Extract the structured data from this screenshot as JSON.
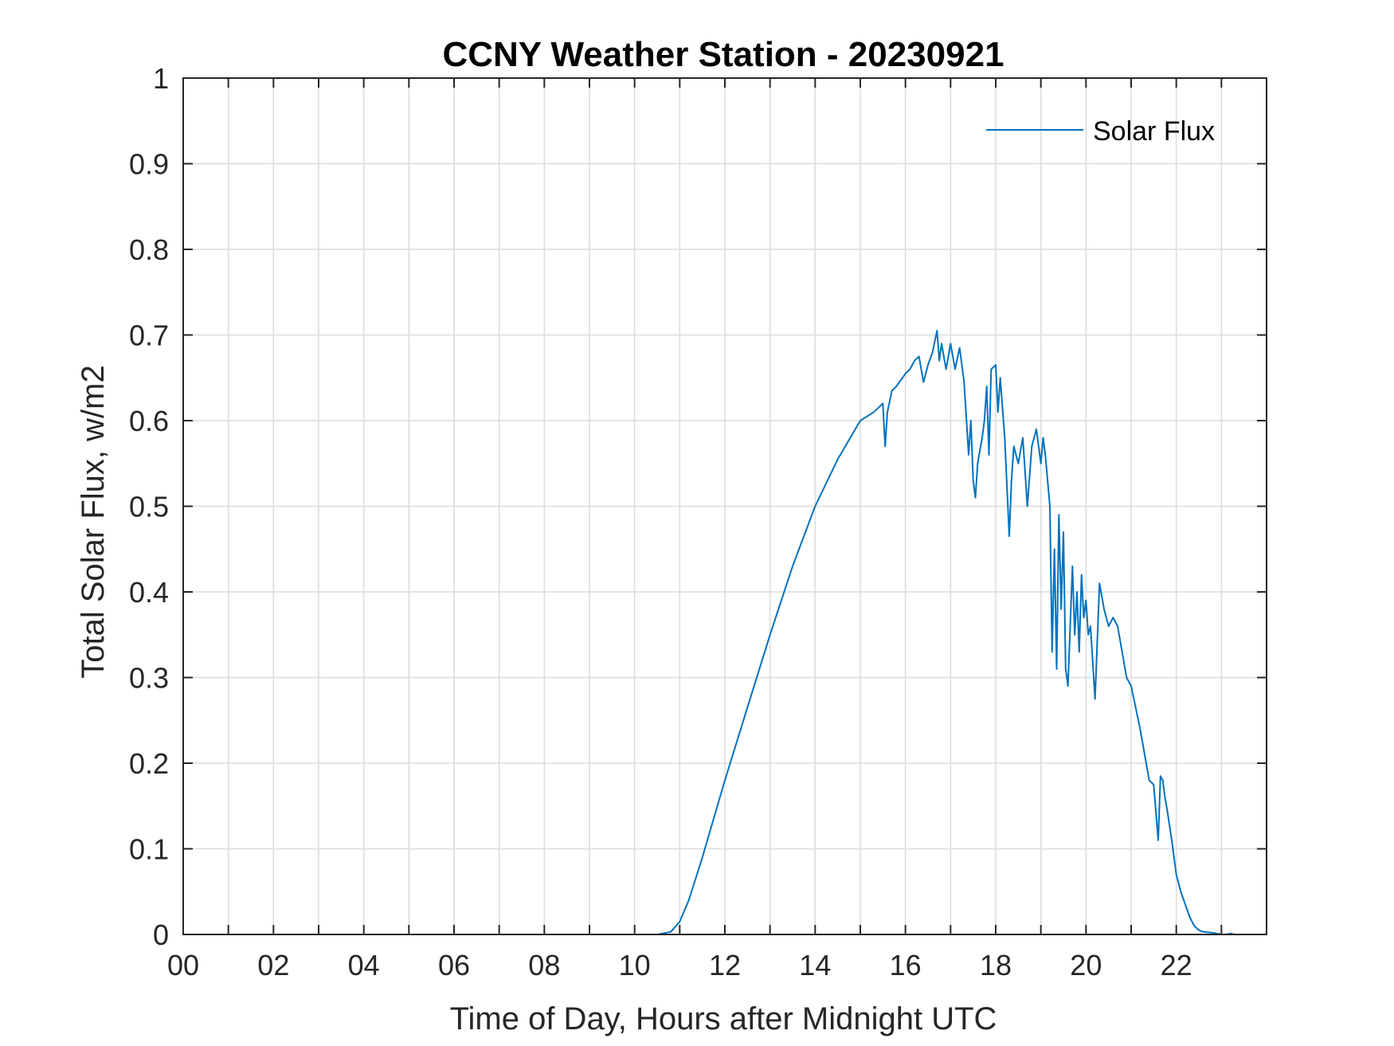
{
  "chart_data": {
    "type": "line",
    "title": "CCNY Weather Station - 20230921",
    "xlabel": "Time of Day, Hours after Midnight UTC",
    "ylabel": "Total Solar Flux, w/m2",
    "xlim": [
      0,
      24
    ],
    "ylim": [
      0,
      1
    ],
    "x_tick_values": [
      0,
      2,
      4,
      6,
      8,
      10,
      12,
      14,
      16,
      18,
      20,
      22
    ],
    "x_tick_labels": [
      "00",
      "02",
      "04",
      "06",
      "08",
      "10",
      "12",
      "14",
      "16",
      "18",
      "20",
      "22"
    ],
    "x_grid_values": [
      0,
      1,
      2,
      3,
      4,
      5,
      6,
      7,
      8,
      9,
      10,
      11,
      12,
      13,
      14,
      15,
      16,
      17,
      18,
      19,
      20,
      21,
      22,
      23
    ],
    "y_tick_values": [
      0,
      0.1,
      0.2,
      0.3,
      0.4,
      0.5,
      0.6,
      0.7,
      0.8,
      0.9,
      1
    ],
    "y_tick_labels": [
      "0",
      "0.1",
      "0.2",
      "0.3",
      "0.4",
      "0.5",
      "0.6",
      "0.7",
      "0.8",
      "0.9",
      "1"
    ],
    "grid": true,
    "legend_position": "top-right",
    "series": [
      {
        "name": "Solar Flux",
        "color": "#0072BD",
        "x": [
          0,
          10.5,
          10.8,
          11.0,
          11.2,
          11.5,
          12.0,
          12.5,
          13.0,
          13.5,
          14.0,
          14.5,
          15.0,
          15.3,
          15.5,
          15.55,
          15.6,
          15.7,
          15.8,
          16.0,
          16.1,
          16.2,
          16.3,
          16.4,
          16.5,
          16.6,
          16.7,
          16.75,
          16.8,
          16.9,
          17.0,
          17.1,
          17.2,
          17.3,
          17.4,
          17.45,
          17.5,
          17.55,
          17.6,
          17.7,
          17.75,
          17.8,
          17.85,
          17.9,
          18.0,
          18.05,
          18.1,
          18.2,
          18.3,
          18.35,
          18.4,
          18.5,
          18.6,
          18.7,
          18.8,
          18.9,
          19.0,
          19.05,
          19.1,
          19.2,
          19.25,
          19.3,
          19.35,
          19.4,
          19.45,
          19.5,
          19.55,
          19.6,
          19.65,
          19.7,
          19.75,
          19.8,
          19.85,
          19.9,
          19.95,
          20.0,
          20.05,
          20.1,
          20.2,
          20.3,
          20.4,
          20.5,
          20.6,
          20.7,
          20.8,
          20.9,
          21.0,
          21.1,
          21.2,
          21.3,
          21.4,
          21.5,
          21.6,
          21.65,
          21.7,
          21.75,
          21.8,
          21.9,
          22.0,
          22.1,
          22.2,
          22.3,
          22.4,
          22.5,
          22.6,
          22.8,
          23.0,
          23.1,
          23.2,
          23.3,
          24.0
        ],
        "values": [
          0,
          0,
          0.003,
          0.015,
          0.04,
          0.09,
          0.18,
          0.265,
          0.35,
          0.43,
          0.5,
          0.555,
          0.6,
          0.61,
          0.62,
          0.57,
          0.61,
          0.635,
          0.64,
          0.655,
          0.66,
          0.67,
          0.675,
          0.645,
          0.665,
          0.68,
          0.705,
          0.67,
          0.69,
          0.66,
          0.69,
          0.66,
          0.685,
          0.645,
          0.56,
          0.6,
          0.53,
          0.51,
          0.55,
          0.58,
          0.6,
          0.64,
          0.56,
          0.66,
          0.665,
          0.61,
          0.65,
          0.58,
          0.465,
          0.53,
          0.57,
          0.55,
          0.58,
          0.5,
          0.57,
          0.59,
          0.55,
          0.58,
          0.56,
          0.5,
          0.33,
          0.45,
          0.31,
          0.49,
          0.38,
          0.47,
          0.31,
          0.29,
          0.36,
          0.43,
          0.35,
          0.4,
          0.33,
          0.42,
          0.37,
          0.39,
          0.35,
          0.36,
          0.275,
          0.41,
          0.38,
          0.36,
          0.37,
          0.36,
          0.33,
          0.3,
          0.29,
          0.265,
          0.24,
          0.21,
          0.18,
          0.175,
          0.11,
          0.185,
          0.18,
          0.16,
          0.145,
          0.11,
          0.07,
          0.05,
          0.035,
          0.02,
          0.01,
          0.005,
          0.003,
          0.002,
          0.0,
          0.0,
          0.001,
          0,
          0
        ]
      }
    ]
  }
}
